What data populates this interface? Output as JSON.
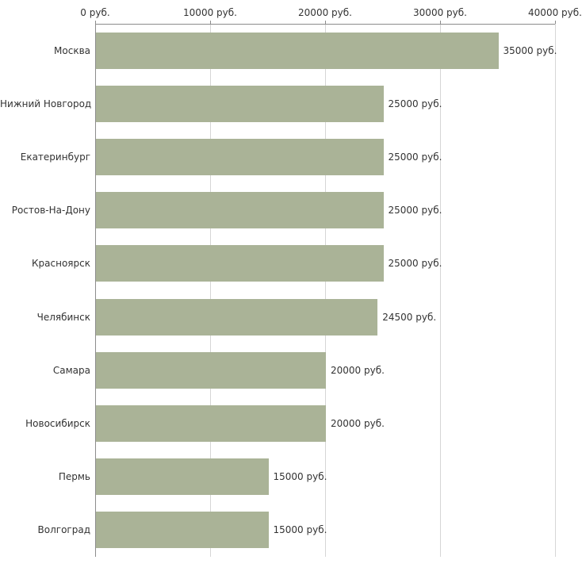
{
  "chart_data": {
    "type": "bar",
    "orientation": "horizontal",
    "title": "",
    "xlabel": "",
    "ylabel": "",
    "grid": true,
    "legend": false,
    "xlim": [
      0,
      40000
    ],
    "tick_values": [
      0,
      10000,
      20000,
      30000,
      40000
    ],
    "tick_labels": [
      "0 руб.",
      "10000 руб.",
      "20000 руб.",
      "30000 руб.",
      "40000 руб."
    ],
    "categories": [
      "Москва",
      "Нижний Новгород",
      "Екатеринбург",
      "Ростов-На-Дону",
      "Красноярск",
      "Челябинск",
      "Самара",
      "Новосибирск",
      "Пермь",
      "Волгоград"
    ],
    "values": [
      35000,
      25000,
      25000,
      25000,
      25000,
      24500,
      20000,
      20000,
      15000,
      15000
    ],
    "value_labels": [
      "35000 руб.",
      "25000 руб.",
      "25000 руб.",
      "25000 руб.",
      "25000 руб.",
      "24500 руб.",
      "20000 руб.",
      "20000 руб.",
      "15000 руб.",
      "15000 руб."
    ],
    "bar_color": "#aab397",
    "text_color": "#333333",
    "axis_color": "#8c8c8c",
    "grid_color": "#d6d6d6"
  }
}
